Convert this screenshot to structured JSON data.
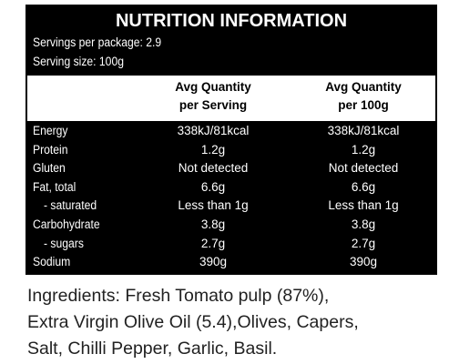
{
  "header": {
    "title": "NUTRITION INFORMATION",
    "servings": "Servings per package: 2.9",
    "serving_size": "Serving size: 100g"
  },
  "table": {
    "columns": [
      [
        "Avg Quantity",
        "per Serving"
      ],
      [
        "Avg Quantity",
        "per 100g"
      ]
    ],
    "rows": [
      [
        "Energy",
        "338kJ/81kcal",
        "338kJ/81kcal"
      ],
      [
        "Protein",
        "1.2g",
        "1.2g"
      ],
      [
        "Gluten",
        "Not detected",
        "Not detected"
      ],
      [
        "Fat, total",
        "6.6g",
        "6.6g"
      ],
      [
        "- saturated",
        "Less than 1g",
        "Less than 1g"
      ],
      [
        "Carbohydrate",
        "3.8g",
        "3.8g"
      ],
      [
        "- sugars",
        "2.7g",
        "2.7g"
      ],
      [
        "Sodium",
        "390g",
        "390g"
      ]
    ]
  },
  "ingredients": [
    "Ingredients: Fresh Tomato pulp (87%),",
    "Extra Virgin Olive Oil (5.4),Olives, Capers,",
    "Salt, Chilli Pepper, Garlic, Basil."
  ]
}
